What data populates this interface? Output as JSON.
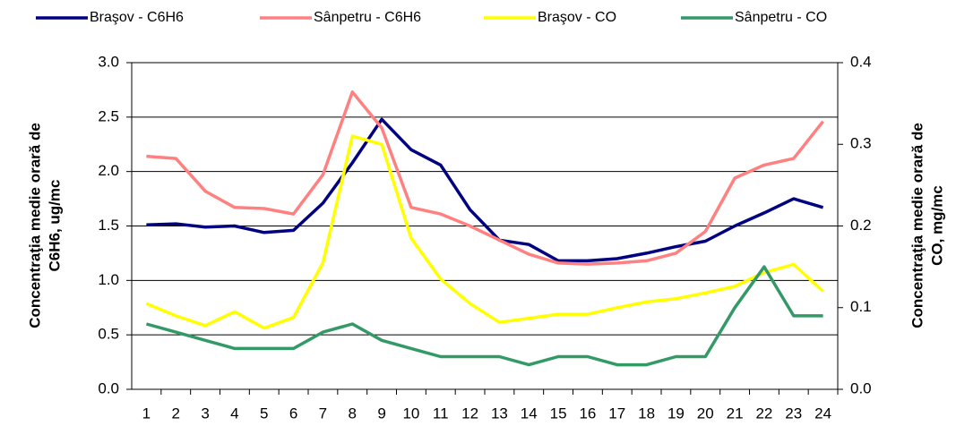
{
  "chart_data": {
    "type": "line",
    "categories": [
      "1",
      "2",
      "3",
      "4",
      "5",
      "6",
      "7",
      "8",
      "9",
      "10",
      "11",
      "12",
      "13",
      "14",
      "15",
      "16",
      "17",
      "18",
      "19",
      "20",
      "21",
      "22",
      "23",
      "24"
    ],
    "series": [
      {
        "name": "Braşov - C6H6",
        "color": "#000080",
        "values": [
          1.51,
          1.52,
          1.49,
          1.5,
          1.44,
          1.46,
          1.71,
          2.08,
          2.48,
          2.2,
          2.06,
          1.65,
          1.37,
          1.33,
          1.18,
          1.18,
          1.2,
          1.25,
          1.31,
          1.36,
          1.5,
          1.62,
          1.75,
          1.67
        ]
      },
      {
        "name": "Sânpetru - C6H6",
        "color": "#ff8080",
        "values": [
          2.14,
          2.12,
          1.82,
          1.67,
          1.66,
          1.61,
          1.97,
          2.73,
          2.4,
          1.67,
          1.61,
          1.5,
          1.37,
          1.24,
          1.16,
          1.15,
          1.16,
          1.18,
          1.25,
          1.45,
          1.94,
          2.06,
          2.12,
          2.46
        ]
      },
      {
        "name": "Braşov - CO",
        "color": "#ffff00",
        "axis": "y2",
        "values": [
          0.105,
          0.09,
          0.078,
          0.095,
          0.075,
          0.088,
          0.155,
          0.31,
          0.3,
          0.185,
          0.135,
          0.105,
          0.082,
          0.087,
          0.092,
          0.092,
          0.1,
          0.107,
          0.111,
          0.118,
          0.126,
          0.143,
          0.153,
          0.12
        ]
      },
      {
        "name": "Sânpetru - CO",
        "color": "#339966",
        "axis": "y2",
        "values": [
          0.08,
          0.07,
          0.06,
          0.05,
          0.05,
          0.05,
          0.07,
          0.08,
          0.06,
          0.05,
          0.04,
          0.04,
          0.04,
          0.03,
          0.04,
          0.04,
          0.03,
          0.03,
          0.04,
          0.04,
          0.1,
          0.15,
          0.09,
          0.09
        ]
      }
    ],
    "ylabel": [
      "Concentraţia medie orară de",
      "C6H6, ug/mc"
    ],
    "y2label": [
      "Concentraţia medie orară de",
      "CO, mg/mc"
    ],
    "ylim": [
      0,
      3
    ],
    "yticks": [
      {
        "value": 0,
        "label": "0.0"
      },
      0.5,
      {
        "value": 1,
        "label": "1.0"
      },
      1.5,
      {
        "value": 2,
        "label": "2.0"
      },
      2.5,
      {
        "value": 3,
        "label": "3.0"
      }
    ],
    "y2lim": [
      0,
      0.4
    ],
    "y2ticks": [
      {
        "value": 0,
        "label": "0.0"
      },
      0.1,
      0.2,
      0.3,
      0.4
    ],
    "grid": true
  }
}
